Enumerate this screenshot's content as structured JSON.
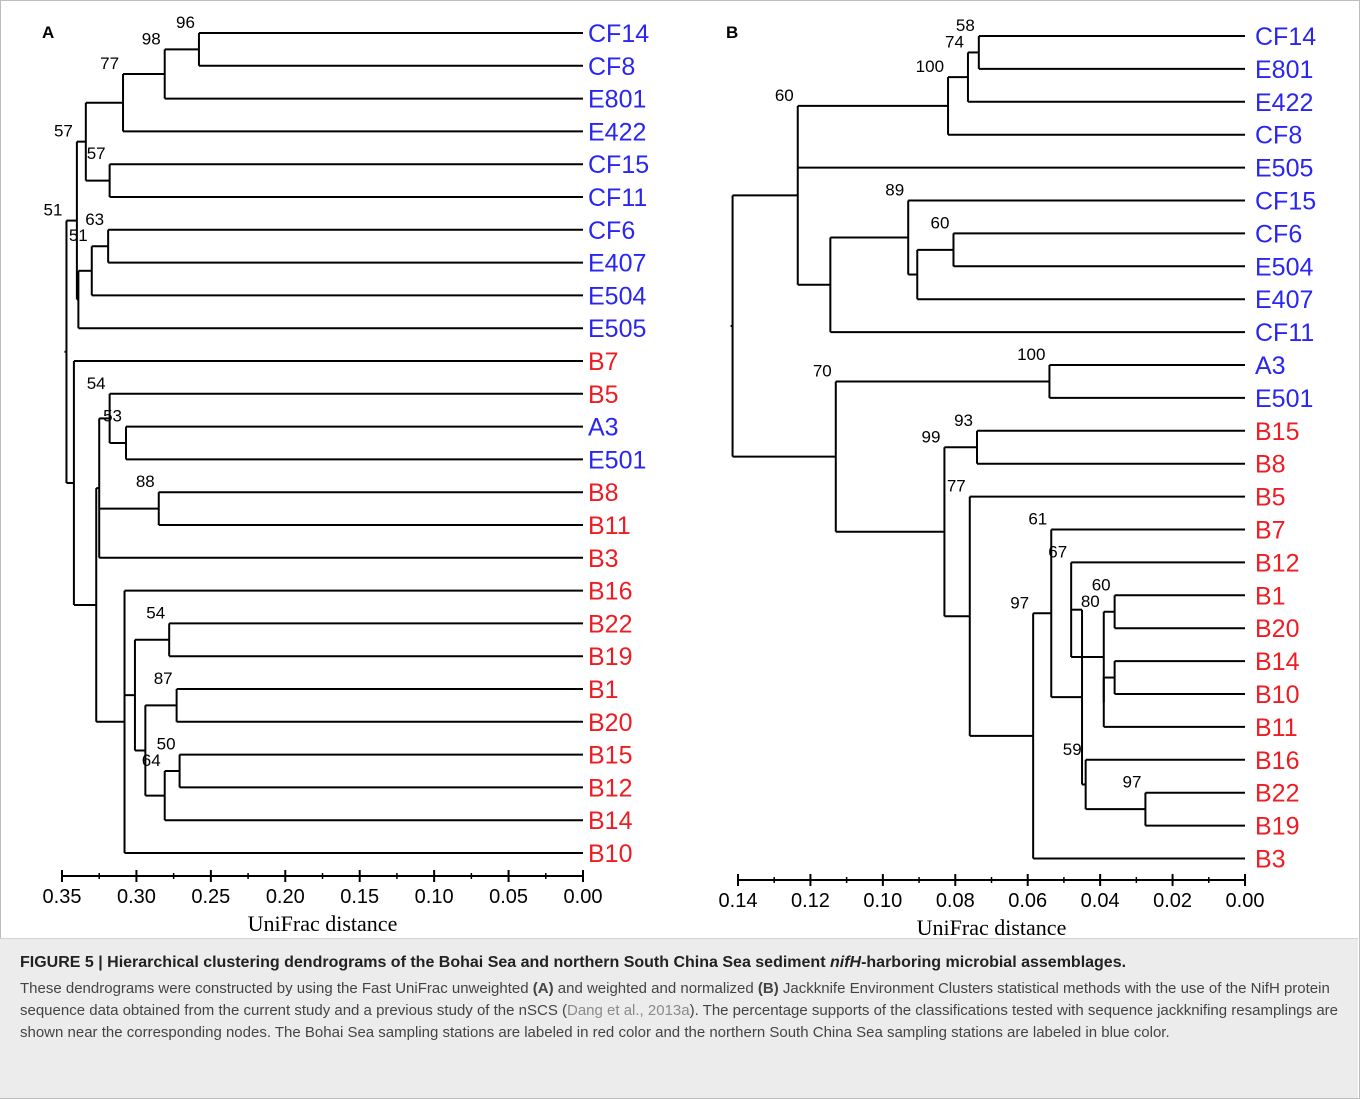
{
  "panels": [
    {
      "letter": "A",
      "axis": {
        "label": "UniFrac distance",
        "ticks": [
          0.35,
          0.3,
          0.25,
          0.2,
          0.15,
          0.1,
          0.05,
          0.0
        ],
        "tick_labels": [
          "0.35",
          "0.30",
          "0.25",
          "0.20",
          "0.15",
          "0.10",
          "0.05",
          "0.00"
        ]
      },
      "leaves": [
        {
          "label": "CF14",
          "group": "nSCS"
        },
        {
          "label": "CF8",
          "group": "nSCS"
        },
        {
          "label": "E801",
          "group": "nSCS"
        },
        {
          "label": "E422",
          "group": "nSCS"
        },
        {
          "label": "CF15",
          "group": "nSCS"
        },
        {
          "label": "CF11",
          "group": "nSCS"
        },
        {
          "label": "CF6",
          "group": "nSCS"
        },
        {
          "label": "E407",
          "group": "nSCS"
        },
        {
          "label": "E504",
          "group": "nSCS"
        },
        {
          "label": "E505",
          "group": "nSCS"
        },
        {
          "label": "B7",
          "group": "Bohai"
        },
        {
          "label": "B5",
          "group": "Bohai"
        },
        {
          "label": "A3",
          "group": "nSCS"
        },
        {
          "label": "E501",
          "group": "nSCS"
        },
        {
          "label": "B8",
          "group": "Bohai"
        },
        {
          "label": "B11",
          "group": "Bohai"
        },
        {
          "label": "B3",
          "group": "Bohai"
        },
        {
          "label": "B16",
          "group": "Bohai"
        },
        {
          "label": "B22",
          "group": "Bohai"
        },
        {
          "label": "B19",
          "group": "Bohai"
        },
        {
          "label": "B1",
          "group": "Bohai"
        },
        {
          "label": "B20",
          "group": "Bohai"
        },
        {
          "label": "B15",
          "group": "Bohai"
        },
        {
          "label": "B12",
          "group": "Bohai"
        },
        {
          "label": "B14",
          "group": "Bohai"
        },
        {
          "label": "B10",
          "group": "Bohai"
        }
      ],
      "nodes": [
        {
          "id": "a1",
          "height": 0.258,
          "children": [
            "L0",
            "L1"
          ],
          "support": "96"
        },
        {
          "id": "a2",
          "height": 0.281,
          "children": [
            "a1",
            "L2"
          ],
          "support": "98"
        },
        {
          "id": "a3",
          "height": 0.309,
          "children": [
            "a2",
            "L3"
          ],
          "support": "77"
        },
        {
          "id": "a4",
          "height": 0.318,
          "children": [
            "L4",
            "L5"
          ],
          "support": "57"
        },
        {
          "id": "a5",
          "height": 0.334,
          "children": [
            "a3",
            "a4"
          ],
          "support": ""
        },
        {
          "id": "a6",
          "height": 0.319,
          "children": [
            "L6",
            "L7"
          ],
          "support": "63"
        },
        {
          "id": "a7",
          "height": 0.33,
          "children": [
            "a6",
            "L8"
          ],
          "support": "51"
        },
        {
          "id": "a8",
          "height": 0.339,
          "children": [
            "a7",
            "L9"
          ],
          "support": ""
        },
        {
          "id": "a9",
          "height": 0.34,
          "children": [
            "a5",
            "a8"
          ],
          "support": "57"
        },
        {
          "id": "a10",
          "height": 0.307,
          "children": [
            "L12",
            "L13"
          ],
          "support": "53"
        },
        {
          "id": "a11",
          "height": 0.318,
          "children": [
            "L11",
            "a10"
          ],
          "support": "54"
        },
        {
          "id": "a12",
          "height": 0.285,
          "children": [
            "L14",
            "L15"
          ],
          "support": "88"
        },
        {
          "id": "a13",
          "height": 0.325,
          "children": [
            "a11",
            "a12",
            "L16"
          ],
          "support": ""
        },
        {
          "id": "a14",
          "height": 0.278,
          "children": [
            "L18",
            "L19"
          ],
          "support": "54"
        },
        {
          "id": "a15",
          "height": 0.273,
          "children": [
            "L20",
            "L21"
          ],
          "support": "87"
        },
        {
          "id": "a16",
          "height": 0.271,
          "children": [
            "L22",
            "L23"
          ],
          "support": "50"
        },
        {
          "id": "a17",
          "height": 0.281,
          "children": [
            "a16",
            "L24"
          ],
          "support": "64"
        },
        {
          "id": "a18",
          "height": 0.294,
          "children": [
            "a15",
            "a17"
          ],
          "support": ""
        },
        {
          "id": "a19",
          "height": 0.301,
          "children": [
            "a14",
            "a18"
          ],
          "support": ""
        },
        {
          "id": "a20",
          "height": 0.308,
          "children": [
            "L17",
            "a19",
            "L25"
          ],
          "support": ""
        },
        {
          "id": "a21",
          "height": 0.327,
          "children": [
            "a13",
            "a20"
          ],
          "support": ""
        },
        {
          "id": "a22",
          "height": 0.342,
          "children": [
            "L10",
            "a21"
          ],
          "support": ""
        },
        {
          "id": "a23",
          "height": 0.347,
          "children": [
            "a9",
            "a22"
          ],
          "support": "51"
        }
      ]
    },
    {
      "letter": "B",
      "axis": {
        "label": "UniFrac distance",
        "ticks": [
          0.14,
          0.12,
          0.1,
          0.08,
          0.06,
          0.04,
          0.02,
          0.0
        ],
        "tick_labels": [
          "0.14",
          "0.12",
          "0.10",
          "0.08",
          "0.06",
          "0.04",
          "0.02",
          "0.00"
        ]
      },
      "leaves": [
        {
          "label": "CF14",
          "group": "nSCS"
        },
        {
          "label": "E801",
          "group": "nSCS"
        },
        {
          "label": "E422",
          "group": "nSCS"
        },
        {
          "label": "CF8",
          "group": "nSCS"
        },
        {
          "label": "E505",
          "group": "nSCS"
        },
        {
          "label": "CF15",
          "group": "nSCS"
        },
        {
          "label": "CF6",
          "group": "nSCS"
        },
        {
          "label": "E504",
          "group": "nSCS"
        },
        {
          "label": "E407",
          "group": "nSCS"
        },
        {
          "label": "CF11",
          "group": "nSCS"
        },
        {
          "label": "A3",
          "group": "nSCS"
        },
        {
          "label": "E501",
          "group": "nSCS"
        },
        {
          "label": "B15",
          "group": "Bohai"
        },
        {
          "label": "B8",
          "group": "Bohai"
        },
        {
          "label": "B5",
          "group": "Bohai"
        },
        {
          "label": "B7",
          "group": "Bohai"
        },
        {
          "label": "B12",
          "group": "Bohai"
        },
        {
          "label": "B1",
          "group": "Bohai"
        },
        {
          "label": "B20",
          "group": "Bohai"
        },
        {
          "label": "B14",
          "group": "Bohai"
        },
        {
          "label": "B10",
          "group": "Bohai"
        },
        {
          "label": "B11",
          "group": "Bohai"
        },
        {
          "label": "B16",
          "group": "Bohai"
        },
        {
          "label": "B22",
          "group": "Bohai"
        },
        {
          "label": "B19",
          "group": "Bohai"
        },
        {
          "label": "B3",
          "group": "Bohai"
        }
      ],
      "nodes": [
        {
          "id": "b1",
          "height": 0.0735,
          "children": [
            "L0",
            "L1"
          ],
          "support": "58"
        },
        {
          "id": "b2",
          "height": 0.0765,
          "children": [
            "b1",
            "L2"
          ],
          "support": "74"
        },
        {
          "id": "b3",
          "height": 0.082,
          "children": [
            "b2",
            "L3"
          ],
          "support": "100"
        },
        {
          "id": "b4",
          "height": 0.0805,
          "children": [
            "L6",
            "L7"
          ],
          "support": "60"
        },
        {
          "id": "b5",
          "height": 0.0905,
          "children": [
            "b4",
            "L8"
          ],
          "support": ""
        },
        {
          "id": "b6",
          "height": 0.093,
          "children": [
            "L5",
            "b5"
          ],
          "support": "89"
        },
        {
          "id": "b7",
          "height": 0.1145,
          "children": [
            "b6",
            "L9"
          ],
          "support": ""
        },
        {
          "id": "b8",
          "height": 0.1235,
          "children": [
            "b3",
            "L4",
            "b7"
          ],
          "support": "60"
        },
        {
          "id": "b9",
          "height": 0.054,
          "children": [
            "L10",
            "L11"
          ],
          "support": "100"
        },
        {
          "id": "b10",
          "height": 0.074,
          "children": [
            "L12",
            "L13"
          ],
          "support": "93"
        },
        {
          "id": "b11",
          "height": 0.036,
          "children": [
            "L17",
            "L18"
          ],
          "support": "60"
        },
        {
          "id": "b12",
          "height": 0.036,
          "children": [
            "L19",
            "L20"
          ],
          "support": ""
        },
        {
          "id": "b13",
          "height": 0.039,
          "children": [
            "b12",
            "L21"
          ],
          "support": ""
        },
        {
          "id": "b14",
          "height": 0.039,
          "children": [
            "b11",
            "b13"
          ],
          "support": "80"
        },
        {
          "id": "b15",
          "height": 0.048,
          "children": [
            "L16",
            "b14"
          ],
          "support": "67"
        },
        {
          "id": "b16",
          "height": 0.0275,
          "children": [
            "L23",
            "L24"
          ],
          "support": "97"
        },
        {
          "id": "b17",
          "height": 0.044,
          "children": [
            "L22",
            "b16"
          ],
          "support": "59"
        },
        {
          "id": "b18",
          "height": 0.045,
          "children": [
            "b15",
            "b17"
          ],
          "support": ""
        },
        {
          "id": "b19",
          "height": 0.0535,
          "children": [
            "L15",
            "b18"
          ],
          "support": "61"
        },
        {
          "id": "b20",
          "height": 0.0585,
          "children": [
            "b19",
            "L25"
          ],
          "support": "97"
        },
        {
          "id": "b21",
          "height": 0.076,
          "children": [
            "L14",
            "b20"
          ],
          "support": "77"
        },
        {
          "id": "b22",
          "height": 0.083,
          "children": [
            "b10",
            "b21"
          ],
          "support": "99"
        },
        {
          "id": "b23",
          "height": 0.113,
          "children": [
            "b9",
            "b22"
          ],
          "support": "70"
        },
        {
          "id": "b24",
          "height": 0.1415,
          "children": [
            "b8",
            "b23"
          ],
          "support": ""
        }
      ]
    }
  ],
  "colors": {
    "Bohai": "#ee1c23",
    "nSCS": "#2a26f0",
    "line": "#000000"
  },
  "caption": {
    "title_prefix": "FIGURE 5 | Hierarchical clustering dendrograms of the Bohai Sea and northern South China Sea sediment ",
    "title_gene": "nifH",
    "title_suffix": "-harboring microbial assemblages.",
    "t1": "These dendrograms were constructed by using the Fast UniFrac unweighted ",
    "ref_a": "(A)",
    "t2": " and weighted and normalized ",
    "ref_b": "(B)",
    "t3": " Jackknife Environment Clusters statistical methods with the use of the NifH protein sequence data obtained from the current study and a previous study of the nSCS (",
    "citation": "Dang et al., 2013a",
    "t4": "). The percentage supports of the classifications tested with sequence jackknifing resamplings are shown near the corresponding nodes. The Bohai Sea sampling stations are labeled in red color and the northern South China Sea sampling stations are labeled in blue color."
  }
}
